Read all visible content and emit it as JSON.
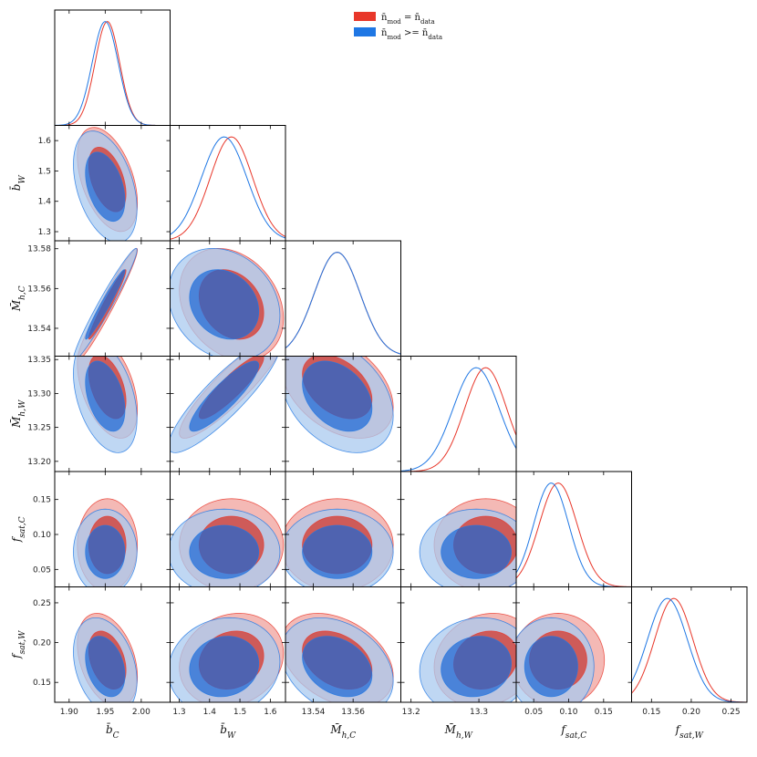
{
  "chart_data": {
    "type": "corner",
    "title": "",
    "params": [
      {
        "key": "bC",
        "label": "b̄C",
        "label_main": "b̄",
        "label_sub": "C",
        "range": [
          1.88,
          2.04
        ],
        "ticks": [
          1.9,
          1.95,
          2.0
        ],
        "tick_labels": [
          "1.90",
          "1.95",
          "2.00"
        ]
      },
      {
        "key": "bW",
        "label": "b̄W",
        "label_main": "b̄",
        "label_sub": "W",
        "range": [
          1.27,
          1.65
        ],
        "ticks": [
          1.3,
          1.4,
          1.5,
          1.6
        ],
        "tick_labels": [
          "1.3",
          "1.4",
          "1.5",
          "1.6"
        ]
      },
      {
        "key": "MhC",
        "label": "M̄h,C",
        "label_main": "M̄",
        "label_sub": "h,C",
        "range": [
          13.526,
          13.584
        ],
        "ticks": [
          13.54,
          13.56,
          13.58
        ],
        "tick_labels": [
          "13.54",
          "13.56",
          "13.58"
        ]
      },
      {
        "key": "MhW",
        "label": "M̄h,W",
        "label_main": "M̄",
        "label_sub": "h,W",
        "range": [
          13.185,
          13.355
        ],
        "ticks": [
          13.2,
          13.25,
          13.3,
          13.35
        ],
        "tick_labels": [
          "13.2",
          "13.25",
          "13.3",
          "13.35"
        ]
      },
      {
        "key": "fsatC",
        "label": "fsat,C",
        "label_main": "f",
        "label_sub": "sat,C",
        "range": [
          0.025,
          0.19
        ],
        "ticks": [
          0.05,
          0.1,
          0.15
        ],
        "tick_labels": [
          "0.05",
          "0.10",
          "0.15"
        ]
      },
      {
        "key": "fsatW",
        "label": "fsat,W",
        "label_main": "f",
        "label_sub": "sat,W",
        "range": [
          0.125,
          0.27
        ],
        "ticks": [
          0.15,
          0.2,
          0.25
        ],
        "tick_labels": [
          "0.15",
          "0.20",
          "0.25"
        ]
      }
    ],
    "x_tick_labels": [
      [
        "1.90",
        "1.95",
        "2.00"
      ],
      [
        "1.3",
        "1.4",
        "1.5",
        "1.6"
      ],
      [
        "13.54",
        "13.56"
      ],
      [
        "13.2",
        "13.3"
      ],
      [
        "0.05",
        "0.10",
        "0.15"
      ],
      [
        "0.15",
        "0.20",
        "0.25"
      ]
    ],
    "x_tick_values": [
      [
        1.9,
        1.95,
        2.0
      ],
      [
        1.3,
        1.4,
        1.5,
        1.6
      ],
      [
        13.54,
        13.56
      ],
      [
        13.2,
        13.3
      ],
      [
        0.05,
        0.1,
        0.15
      ],
      [
        0.15,
        0.2,
        0.25
      ]
    ],
    "y_tick_labels": [
      null,
      [
        "1.3",
        "1.4",
        "1.5",
        "1.6"
      ],
      [
        "13.54",
        "13.56",
        "13.58"
      ],
      [
        "13.20",
        "13.25",
        "13.30",
        "13.35"
      ],
      [
        "0.05",
        "0.10",
        "0.15"
      ],
      [
        "0.15",
        "0.20",
        "0.25"
      ]
    ],
    "y_tick_values": [
      null,
      [
        1.3,
        1.4,
        1.5,
        1.6
      ],
      [
        13.54,
        13.56,
        13.58
      ],
      [
        13.2,
        13.25,
        13.3,
        13.35
      ],
      [
        0.05,
        0.1,
        0.15
      ],
      [
        0.15,
        0.2,
        0.25
      ]
    ],
    "legend": {
      "position": "top-center",
      "entries": [
        {
          "name": "n̄mod = n̄data",
          "main_left": "n̄",
          "sub_left": "mod",
          "op": " = ",
          "main_right": "n̄",
          "sub_right": "data",
          "color": "#e8372a"
        },
        {
          "name": "n̄mod >= n̄data",
          "main_left": "n̄",
          "sub_left": "mod",
          "op": " >= ",
          "main_right": "n̄",
          "sub_right": "data",
          "color": "#1f77e4"
        }
      ]
    },
    "series": [
      {
        "name": "n̄mod = n̄data",
        "color": "#e8372a",
        "fill_inner": "#d62d1f",
        "fill_outer": "#f0a29c",
        "means": [
          1.953,
          1.472,
          13.552,
          13.31,
          0.085,
          0.178
        ],
        "sigmas": [
          0.017,
          0.07,
          0.0115,
          0.031,
          0.027,
          0.024
        ],
        "correlations": [
          [
            1.0,
            -0.45,
            0.97,
            -0.45,
            0.0,
            -0.35
          ],
          [
            -0.45,
            1.0,
            -0.25,
            0.9,
            0.0,
            0.15
          ],
          [
            0.97,
            -0.25,
            1.0,
            -0.4,
            0.0,
            -0.35
          ],
          [
            -0.45,
            0.9,
            -0.4,
            1.0,
            0.0,
            0.15
          ],
          [
            0.0,
            0.0,
            0.0,
            0.0,
            1.0,
            0.0
          ],
          [
            -0.35,
            0.15,
            -0.35,
            0.15,
            0.0,
            1.0
          ]
        ]
      },
      {
        "name": "n̄mod >= n̄data",
        "color": "#1f77e4",
        "fill_inner": "#1a66d6",
        "fill_outer": "#a9c9ef",
        "means": [
          1.95,
          1.448,
          13.552,
          13.296,
          0.075,
          0.17
        ],
        "sigmas": [
          0.018,
          0.075,
          0.0115,
          0.034,
          0.025,
          0.025
        ],
        "correlations": [
          [
            1.0,
            -0.4,
            0.97,
            -0.4,
            0.0,
            -0.3
          ],
          [
            -0.4,
            1.0,
            -0.2,
            0.88,
            0.0,
            0.1
          ],
          [
            0.97,
            -0.2,
            1.0,
            -0.35,
            0.0,
            -0.3
          ],
          [
            -0.4,
            0.88,
            -0.35,
            1.0,
            0.0,
            0.1
          ],
          [
            0.0,
            0.0,
            0.0,
            0.0,
            1.0,
            0.0
          ],
          [
            -0.3,
            0.1,
            -0.3,
            0.1,
            0.0,
            1.0
          ]
        ]
      }
    ]
  }
}
